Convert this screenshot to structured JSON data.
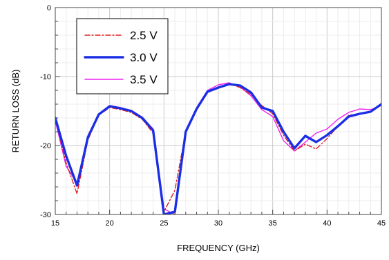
{
  "chart_data": {
    "type": "line",
    "xlabel": "FREQUENCY (GHz)",
    "ylabel": "RETURN LOSS (dB)",
    "xlim": [
      15,
      45
    ],
    "ylim": [
      -30,
      0
    ],
    "xticks": [
      15,
      20,
      25,
      30,
      35,
      40,
      45
    ],
    "yticks": [
      0,
      -10,
      -20,
      -30
    ],
    "grid": true,
    "legend_position": "top-left",
    "series": [
      {
        "name": "2.5 V",
        "color": "#e02020",
        "style": "dashdot",
        "x": [
          15,
          16,
          17,
          18,
          19,
          20,
          21,
          22,
          23,
          24,
          25,
          26,
          27,
          28,
          29,
          30,
          31,
          32,
          33,
          34,
          35,
          36,
          37,
          38,
          39,
          40,
          41,
          42,
          43,
          44,
          45
        ],
        "y": [
          -16.2,
          -22.5,
          -27,
          -19.2,
          -15.6,
          -14.5,
          -14.8,
          -15.2,
          -16.2,
          -18.2,
          -29.6,
          -26.5,
          -18.0,
          -14.8,
          -12.2,
          -11.5,
          -11.0,
          -11.6,
          -12.6,
          -14.2,
          -15.4,
          -18.5,
          -20.8,
          -19.8,
          -20.5,
          -19.0,
          -17.2,
          -15.6,
          -15.4,
          -15.2,
          -14.0
        ]
      },
      {
        "name": "3.0 V",
        "color": "#1a2ee6",
        "style": "solid",
        "x": [
          15,
          16,
          17,
          18,
          19,
          20,
          21,
          22,
          23,
          24,
          25,
          26,
          27,
          28,
          29,
          30,
          31,
          32,
          33,
          34,
          35,
          36,
          37,
          38,
          39,
          40,
          41,
          42,
          43,
          44,
          45
        ],
        "y": [
          -16.0,
          -21.5,
          -25.8,
          -18.8,
          -15.5,
          -14.3,
          -14.6,
          -15.0,
          -16.0,
          -17.8,
          -30.0,
          -29.6,
          -18.0,
          -14.7,
          -12.2,
          -11.6,
          -11.1,
          -11.3,
          -12.3,
          -14.5,
          -15.0,
          -18.0,
          -20.4,
          -18.6,
          -19.5,
          -18.5,
          -17.2,
          -15.8,
          -15.4,
          -15.1,
          -14.0
        ]
      },
      {
        "name": "3.5 V",
        "color": "#ee22ee",
        "style": "solid",
        "x": [
          15,
          16,
          17,
          18,
          19,
          20,
          21,
          22,
          23,
          24,
          25,
          26,
          27,
          28,
          29,
          30,
          31,
          32,
          33,
          34,
          35,
          36,
          37,
          38,
          39,
          40,
          41,
          42,
          43,
          44,
          45
        ],
        "y": [
          -16.4,
          -23.0,
          -25.5,
          -19.0,
          -15.4,
          -14.2,
          -14.5,
          -14.9,
          -15.9,
          -17.6,
          -29.2,
          -30.0,
          -17.8,
          -14.5,
          -12.0,
          -11.2,
          -10.9,
          -11.5,
          -12.8,
          -14.8,
          -15.8,
          -19.3,
          -20.8,
          -19.5,
          -18.2,
          -17.6,
          -16.2,
          -15.2,
          -14.7,
          -14.8,
          -14.2
        ]
      }
    ]
  }
}
